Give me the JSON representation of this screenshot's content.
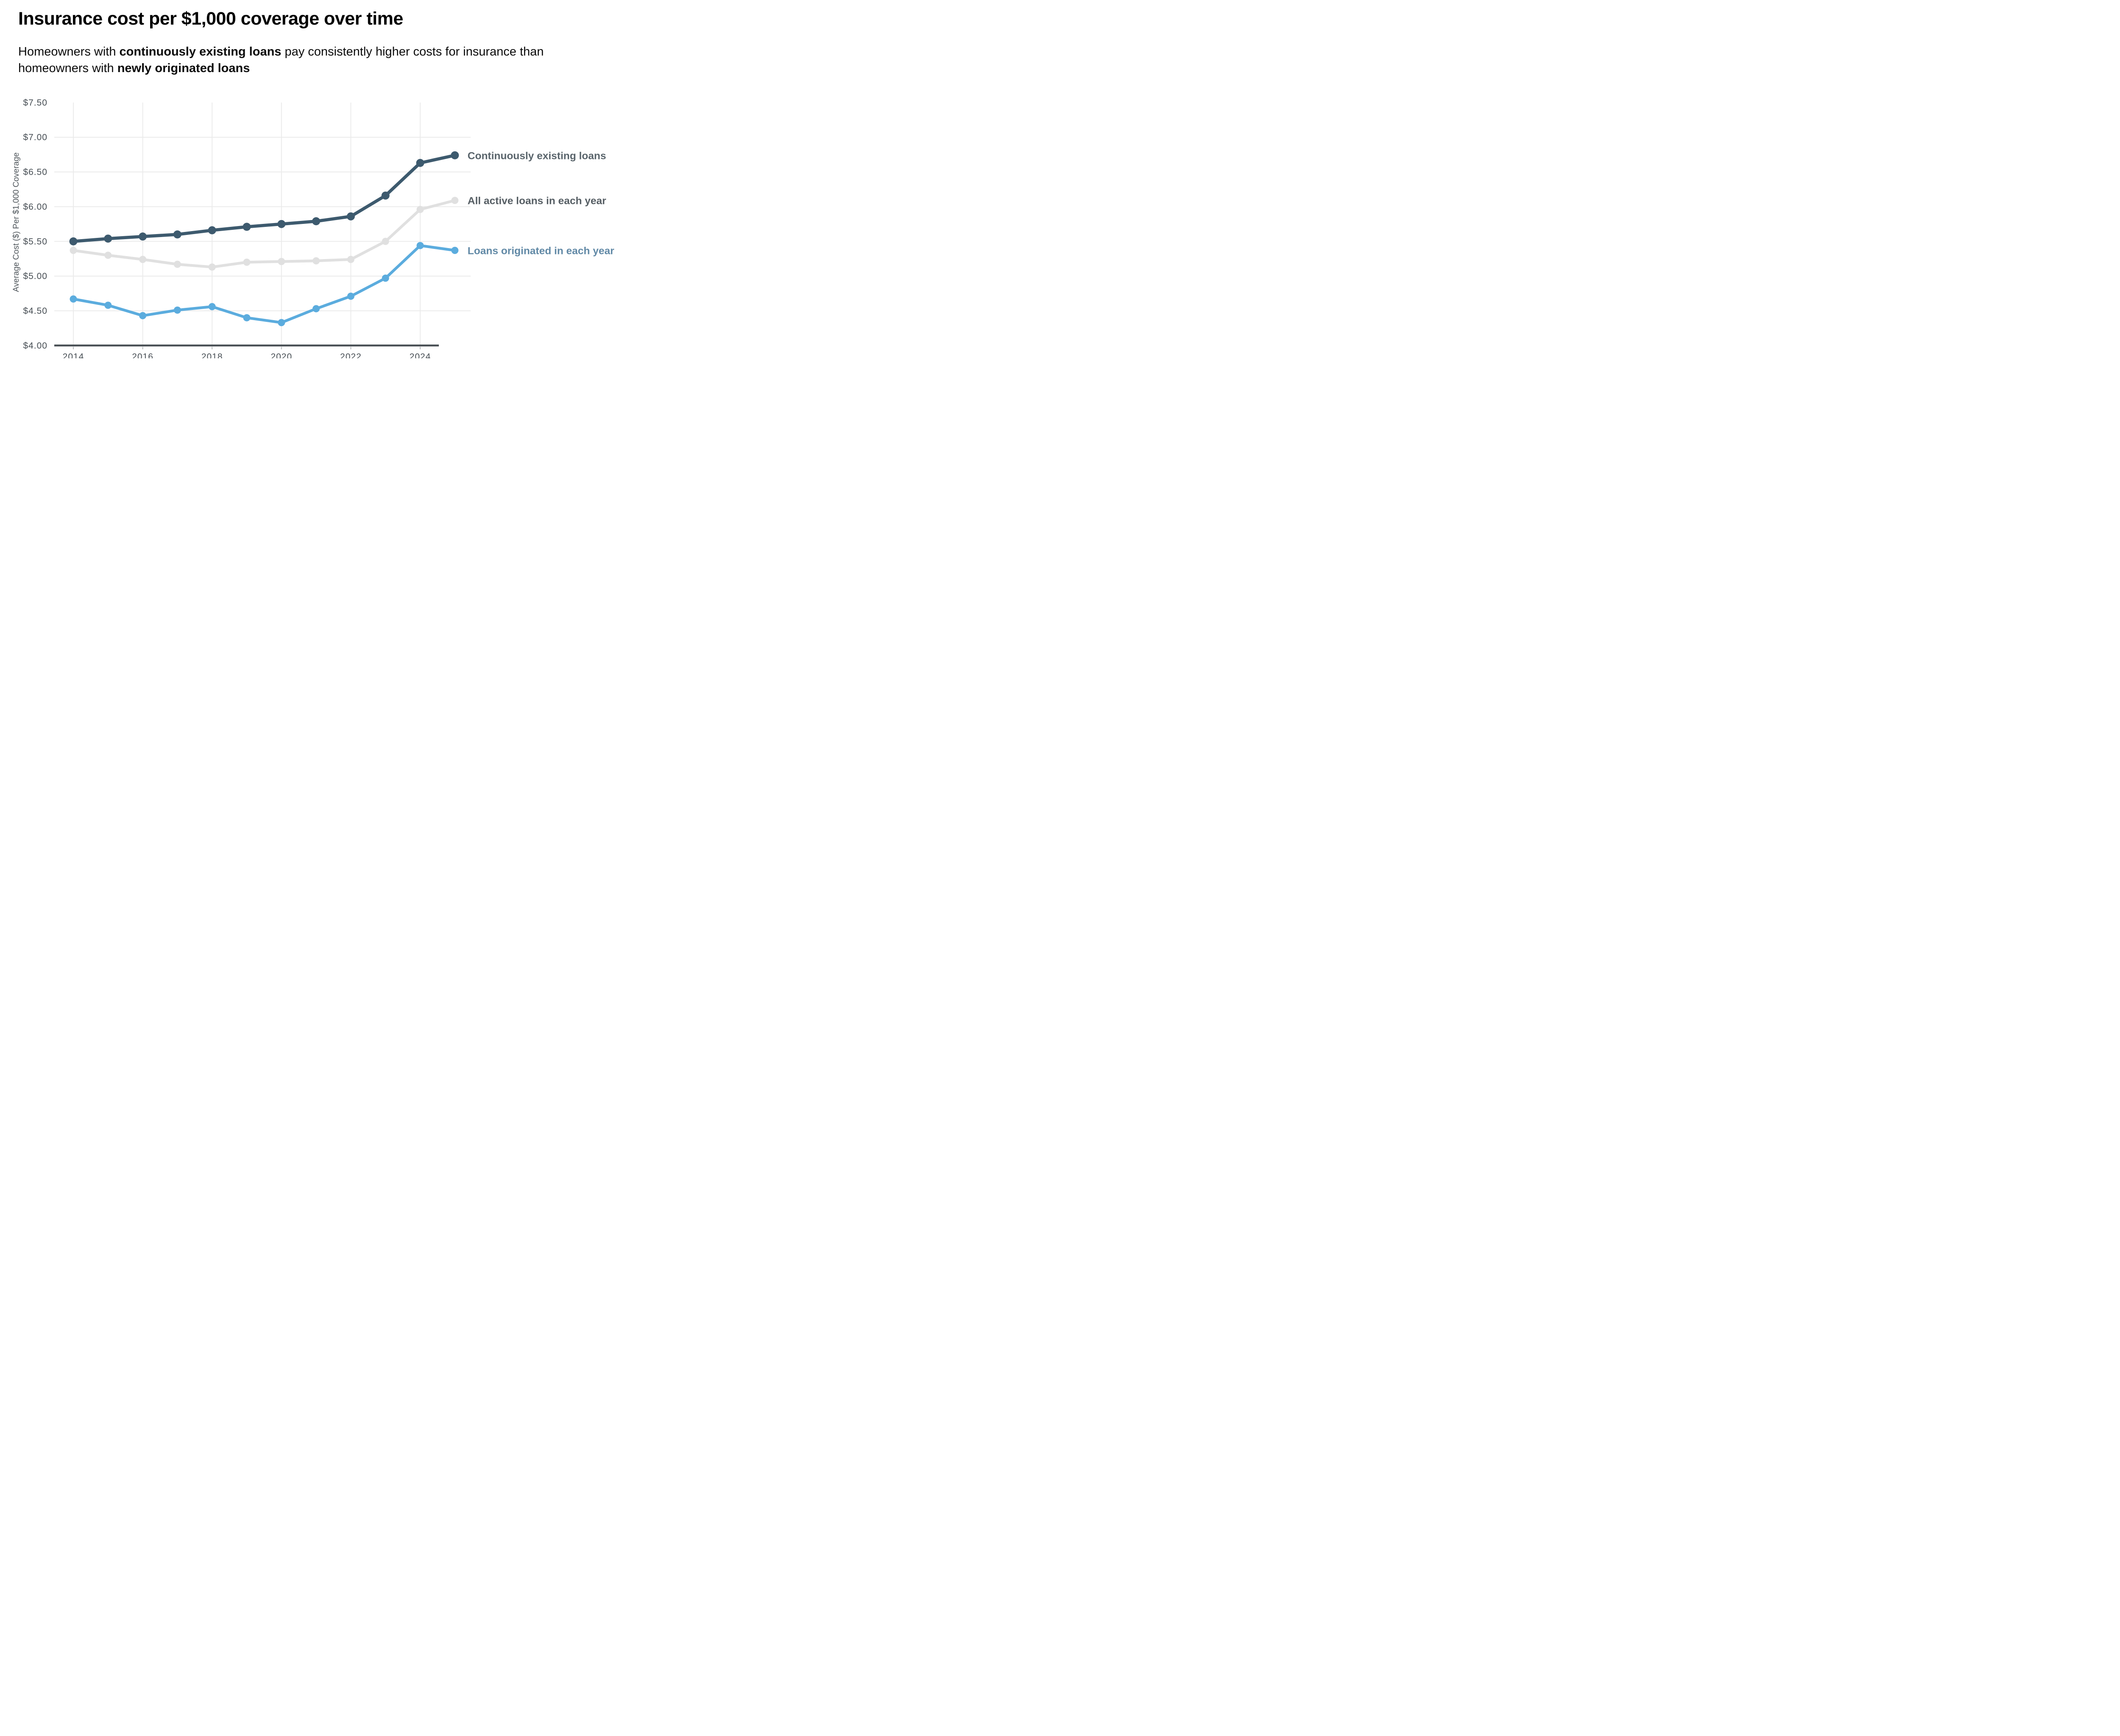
{
  "header": {
    "title": "Insurance cost per $1,000 coverage over time",
    "subtitle": {
      "pre": "Homeowners with ",
      "bold1": "continuously existing loans",
      "mid": " pay consistently higher costs for insurance than homeowners with ",
      "bold2": "newly originated loans"
    }
  },
  "chart_data": {
    "type": "line",
    "title": "Insurance cost per $1,000 coverage over time",
    "xlabel": "",
    "ylabel": "Average Cost ($) Per $1,000 Coverage",
    "x": [
      2014,
      2015,
      2016,
      2017,
      2018,
      2019,
      2020,
      2021,
      2022,
      2023,
      2024,
      2025
    ],
    "xlim": [
      2014,
      2025
    ],
    "ylim": [
      4.0,
      7.5
    ],
    "grid": "horizontal lines at $4.50-$7.00, vertical lines at even years 2014-2024",
    "legend_position": "right of line ends (direct labels)",
    "x_ticks": [
      {
        "label": "2014",
        "value": 2014
      },
      {
        "label": "2016",
        "value": 2016
      },
      {
        "label": "2018",
        "value": 2018
      },
      {
        "label": "2020",
        "value": 2020
      },
      {
        "label": "2022",
        "value": 2022
      },
      {
        "label": "2024",
        "value": 2024
      }
    ],
    "y_ticks": [
      {
        "label": "$7.50",
        "value": 7.5,
        "gridline": false
      },
      {
        "label": "$7.00",
        "value": 7.0,
        "gridline": true
      },
      {
        "label": "$6.50",
        "value": 6.5,
        "gridline": true
      },
      {
        "label": "$6.00",
        "value": 6.0,
        "gridline": true
      },
      {
        "label": "$5.50",
        "value": 5.5,
        "gridline": true
      },
      {
        "label": "$5.00",
        "value": 5.0,
        "gridline": true
      },
      {
        "label": "$4.50",
        "value": 4.5,
        "gridline": true
      },
      {
        "label": "$4.00",
        "value": 4.0,
        "gridline": false
      }
    ],
    "series": [
      {
        "name": "Continuously existing loans",
        "color": "#3D5A6E",
        "label_color": "#59646B",
        "values": [
          5.5,
          5.54,
          5.57,
          5.6,
          5.66,
          5.71,
          5.75,
          5.79,
          5.86,
          6.16,
          6.63,
          6.74
        ]
      },
      {
        "name": "All active loans in each year",
        "color": "#E0E0E0",
        "label_color": "#565E64",
        "values": [
          5.37,
          5.3,
          5.24,
          5.17,
          5.13,
          5.2,
          5.21,
          5.22,
          5.24,
          5.5,
          5.96,
          6.09
        ]
      },
      {
        "name": "Loans originated in each year",
        "color": "#5BACDE",
        "label_color": "#6189A6",
        "values": [
          4.67,
          4.58,
          4.43,
          4.51,
          4.56,
          4.4,
          4.33,
          4.53,
          4.71,
          4.97,
          5.44,
          5.37
        ]
      }
    ],
    "style": {
      "gridline_color": "#EBEBEB",
      "axis_line_color": "#4A5055",
      "tick_label_color": "#474E54",
      "axis_title_color": "#50575C",
      "background": "#FFFFFF"
    }
  }
}
